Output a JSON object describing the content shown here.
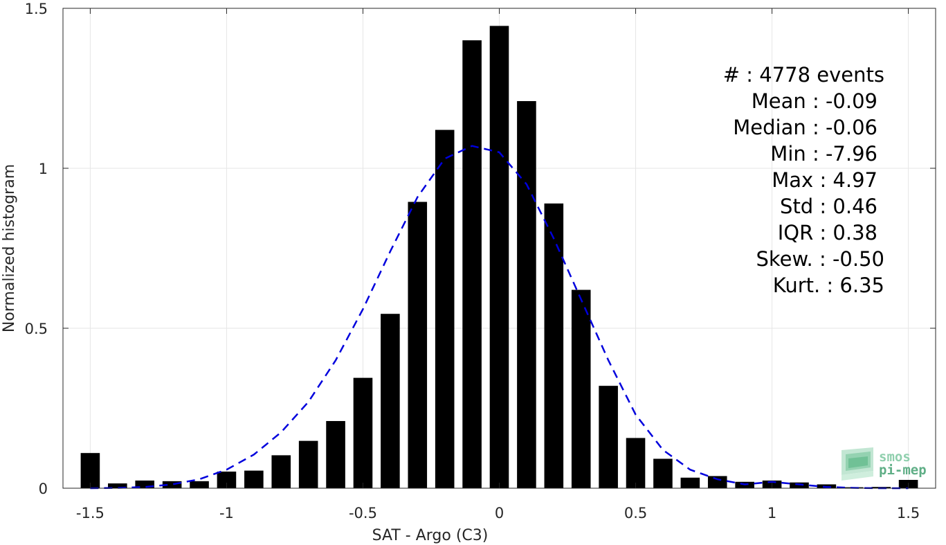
{
  "chart_data": {
    "type": "bar",
    "xlabel": "SAT - Argo (C3)",
    "ylabel": "Normalized histogram",
    "xlim": [
      -1.6,
      1.6
    ],
    "ylim": [
      0,
      1.5
    ],
    "xticks": [
      -1.5,
      -1,
      -0.5,
      0,
      0.5,
      1,
      1.5
    ],
    "xtick_labels": [
      "-1.5",
      "-1",
      "-0.5",
      "0",
      "0.5",
      "1",
      "1.5"
    ],
    "yticks": [
      0,
      0.5,
      1,
      1.5
    ],
    "ytick_labels": [
      "0",
      "0.5",
      "1",
      "1.5"
    ],
    "grid": true,
    "bar_width": 0.07,
    "bar_color": "#000000",
    "bars": {
      "x": [
        -1.5,
        -1.4,
        -1.3,
        -1.2,
        -1.1,
        -1.0,
        -0.9,
        -0.8,
        -0.7,
        -0.6,
        -0.5,
        -0.4,
        -0.3,
        -0.2,
        -0.1,
        0.0,
        0.1,
        0.2,
        0.3,
        0.4,
        0.5,
        0.6,
        0.7,
        0.8,
        0.9,
        1.0,
        1.1,
        1.2,
        1.3,
        1.4,
        1.5
      ],
      "values": [
        0.11,
        0.015,
        0.024,
        0.022,
        0.022,
        0.052,
        0.055,
        0.103,
        0.148,
        0.21,
        0.345,
        0.545,
        0.895,
        1.12,
        1.4,
        1.445,
        1.21,
        0.89,
        0.62,
        0.32,
        0.157,
        0.092,
        0.033,
        0.038,
        0.02,
        0.024,
        0.018,
        0.012,
        0.003,
        0.004,
        0.026
      ]
    },
    "fit": {
      "name": "",
      "style": "dashed",
      "color": "#0000dd",
      "x": [
        -1.5,
        -1.4,
        -1.3,
        -1.2,
        -1.1,
        -1.0,
        -0.9,
        -0.8,
        -0.7,
        -0.6,
        -0.5,
        -0.4,
        -0.3,
        -0.2,
        -0.1,
        0.0,
        0.1,
        0.2,
        0.3,
        0.4,
        0.5,
        0.6,
        0.7,
        0.8,
        0.9,
        1.0,
        1.1,
        1.2,
        1.3,
        1.4,
        1.5
      ],
      "values": [
        0.0,
        0.001,
        0.004,
        0.012,
        0.028,
        0.058,
        0.105,
        0.175,
        0.27,
        0.4,
        0.56,
        0.74,
        0.91,
        1.03,
        1.07,
        1.05,
        0.95,
        0.78,
        0.59,
        0.4,
        0.23,
        0.12,
        0.058,
        0.028,
        0.012,
        0.02,
        0.012,
        0.004,
        0.001,
        0.0,
        0.0
      ]
    },
    "annotations": [
      "#  : 4778 events",
      "Mean : -0.09",
      "Median : -0.06",
      "Min : -7.96",
      "Max : 4.97",
      "Std : 0.46",
      "IQR : 0.38",
      "Skew. : -0.50",
      "Kurt. : 6.35"
    ]
  },
  "logo": {
    "line1": "smos",
    "line2": "pi-mep",
    "color1": "#8fcfad",
    "color2": "#5fae86"
  }
}
